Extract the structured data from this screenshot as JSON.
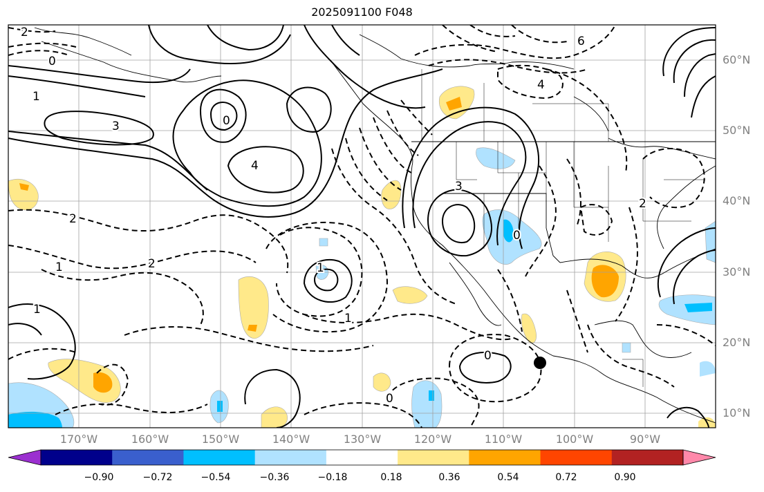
{
  "title": "2025091100 F048",
  "lat_labels": [
    "60°N",
    "50°N",
    "40°N",
    "30°N",
    "20°N",
    "10°N"
  ],
  "lon_labels": [
    "170°W",
    "160°W",
    "150°W",
    "140°W",
    "130°W",
    "120°W",
    "110°W",
    "100°W",
    "90°W"
  ],
  "colorbar": {
    "ticks": [
      "−0.90",
      "−0.72",
      "−0.54",
      "−0.36",
      "−0.18",
      "0.18",
      "0.36",
      "0.54",
      "0.72",
      "0.90"
    ],
    "colors": [
      "#9b30d0",
      "#00008b",
      "#3a5fcd",
      "#00bfff",
      "#b0e2ff",
      "#ffffff",
      "#ffe98a",
      "#ffa500",
      "#ff4500",
      "#b22222",
      "#ff88aa"
    ]
  },
  "contour_labels": [
    "2",
    "0",
    "1",
    "3",
    "4",
    "0",
    "2",
    "1",
    "1",
    "0",
    "2",
    "4",
    "6",
    "3",
    "0",
    "2",
    "1",
    "1",
    "0"
  ],
  "marker": "storm-center-dot"
}
